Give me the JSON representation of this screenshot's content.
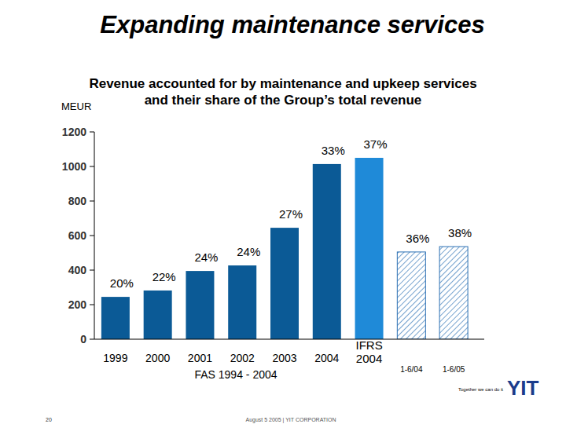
{
  "chart_data": {
    "type": "bar",
    "title": "Expanding maintenance services",
    "subtitle": [
      "Revenue accounted for by maintenance and upkeep services",
      "and their share of the Group’s total revenue"
    ],
    "y_label": "MEUR",
    "categories": [
      "1999",
      "2000",
      "2001",
      "2002",
      "2003",
      "2004",
      "IFRS 2004",
      "1-6/04",
      "1-6/05"
    ],
    "values": [
      245,
      282,
      395,
      427,
      645,
      1014,
      1050,
      505,
      536
    ],
    "colors": [
      "#0b5a96",
      "#0b5a96",
      "#0b5a96",
      "#0b5a96",
      "#0b5a96",
      "#0b5a96",
      "#1f8ad8",
      "#2a6fb3",
      "#2a6fb3"
    ],
    "share_labels": [
      "20%",
      "22%",
      "24%",
      "24%",
      "27%",
      "33%",
      "37%",
      "36%",
      "38%"
    ],
    "group_label": "FAS 1994 - 2004",
    "ylim": [
      0,
      1200
    ],
    "yticks": [
      0,
      200,
      400,
      600,
      800,
      1000,
      1200
    ],
    "grid": false
  },
  "slide": {
    "page_number": "20",
    "footer": "August 5 2005  |  YIT CORPORATION",
    "tagline": "Together we can do it",
    "logo": "YIT"
  }
}
